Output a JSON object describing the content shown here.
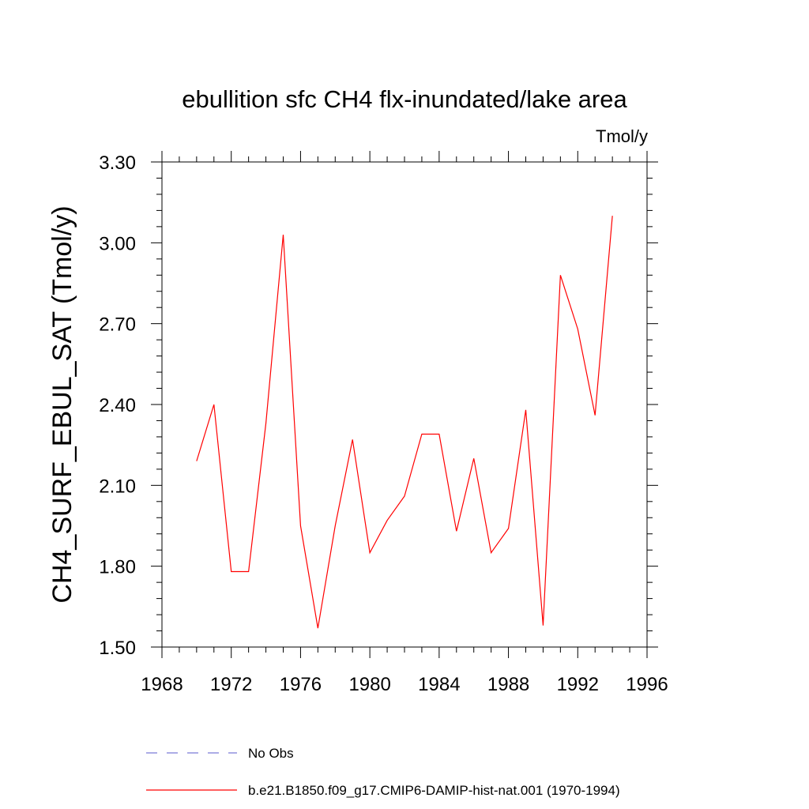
{
  "chart_data": {
    "type": "line",
    "title": "ebullition sfc CH4 flx-inundated/lake area",
    "units_label": "Tmol/y",
    "ylabel": "CH4_SURF_EBUL_SAT  (Tmol/y)",
    "xlabel": "",
    "xlim": [
      1968,
      1996
    ],
    "ylim": [
      1.5,
      3.3
    ],
    "x_ticks": [
      1968,
      1972,
      1976,
      1980,
      1984,
      1988,
      1992,
      1996
    ],
    "x_tick_labels": [
      "1968",
      "1972",
      "1976",
      "1980",
      "1984",
      "1988",
      "1992",
      "1996"
    ],
    "y_ticks": [
      1.5,
      1.8,
      2.1,
      2.4,
      2.7,
      3.0,
      3.3
    ],
    "y_tick_labels": [
      "1.50",
      "1.80",
      "2.10",
      "2.40",
      "2.70",
      "3.00",
      "3.30"
    ],
    "grid": false,
    "legend_position": "bottom",
    "series": [
      {
        "name": "No Obs",
        "color": "#7b7bd6",
        "dash": "dashed",
        "x": [],
        "y": []
      },
      {
        "name": "b.e21.B1850.f09_g17.CMIP6-DAMIP-hist-nat.001 (1970-1994)",
        "color": "#ff0000",
        "dash": "solid",
        "x": [
          1970,
          1971,
          1972,
          1973,
          1974,
          1975,
          1976,
          1977,
          1978,
          1979,
          1980,
          1981,
          1982,
          1983,
          1984,
          1985,
          1986,
          1987,
          1988,
          1989,
          1990,
          1991,
          1992,
          1993,
          1994
        ],
        "y": [
          2.19,
          2.4,
          1.78,
          1.78,
          2.33,
          3.03,
          1.95,
          1.57,
          1.95,
          2.27,
          1.85,
          1.97,
          2.06,
          2.29,
          2.29,
          1.93,
          2.2,
          1.85,
          1.94,
          2.38,
          1.58,
          2.88,
          2.68,
          2.36,
          3.1
        ]
      }
    ]
  }
}
